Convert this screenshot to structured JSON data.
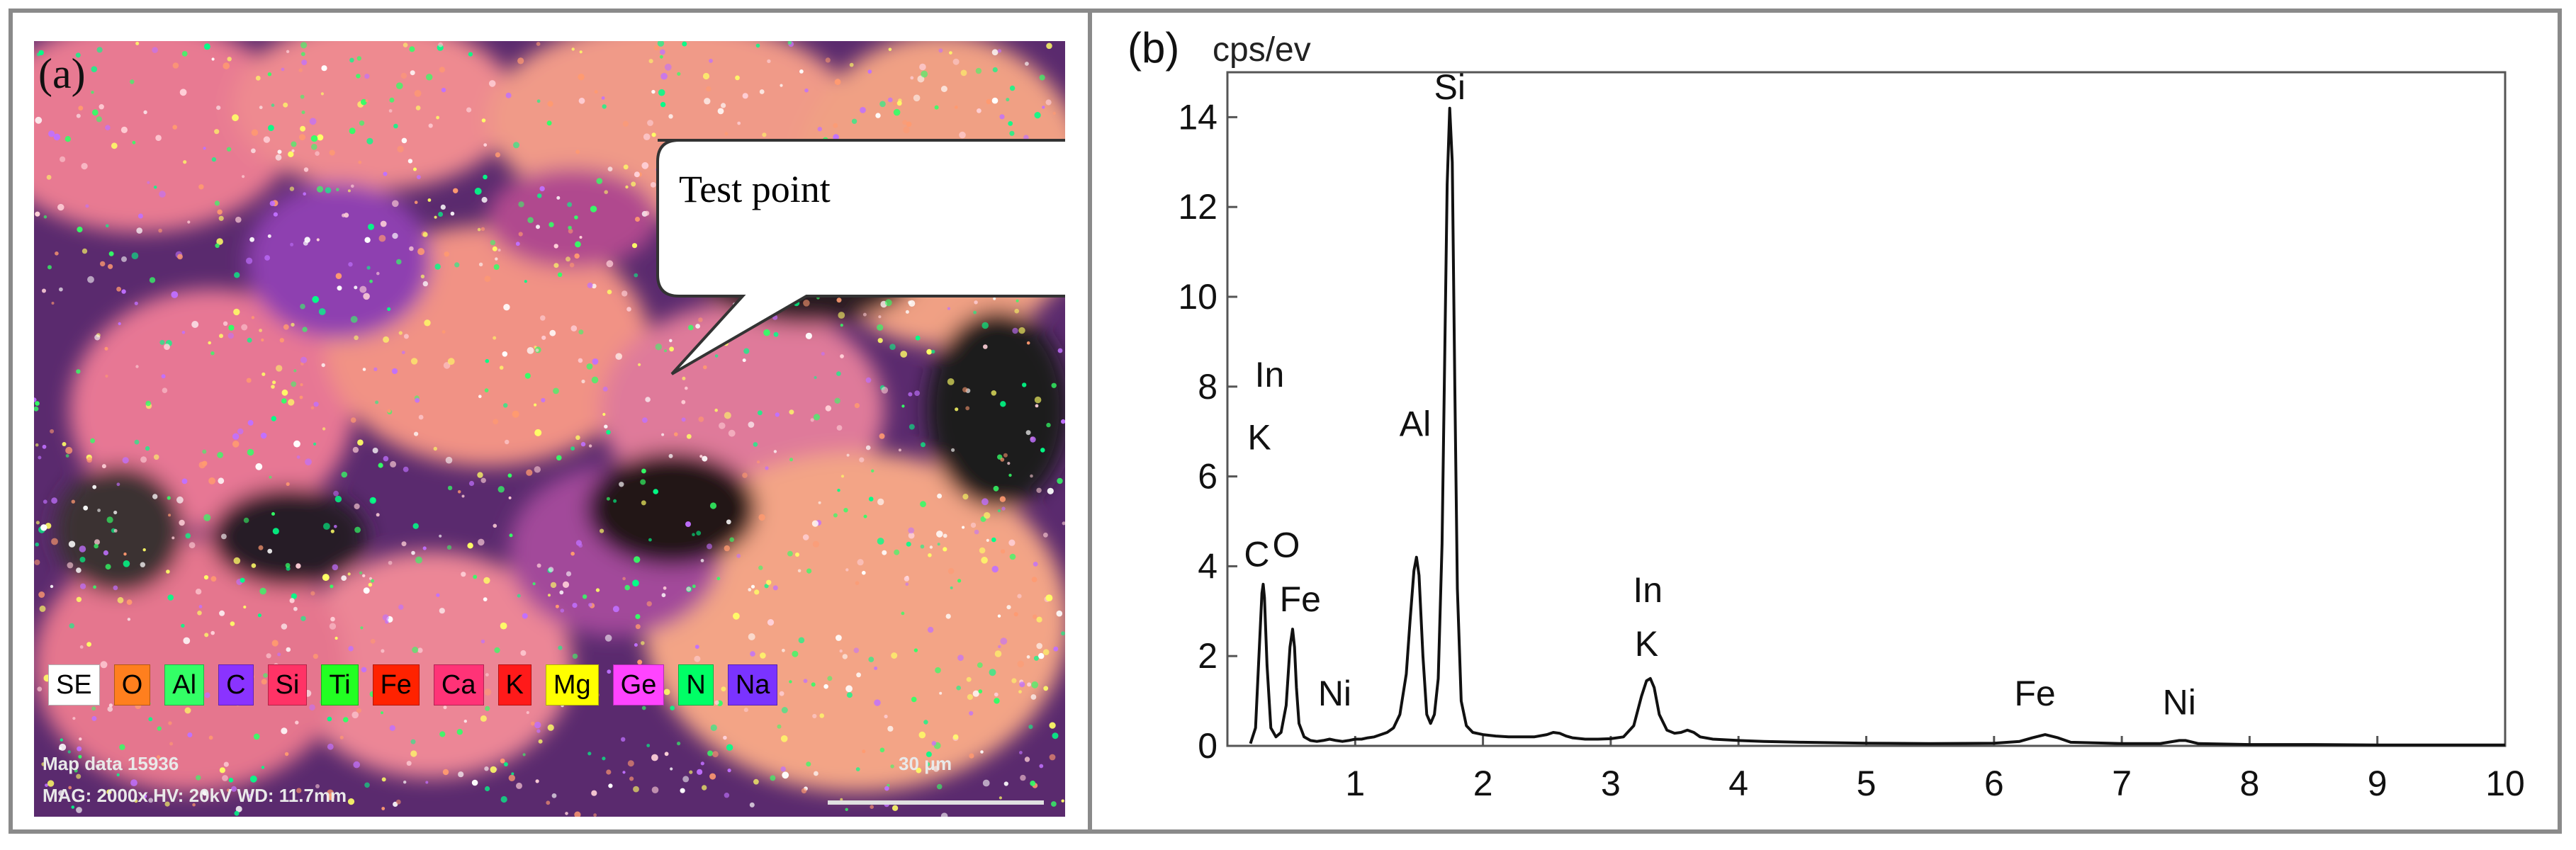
{
  "panel_a": {
    "label": "(a)",
    "callout": "Test point",
    "legend": [
      {
        "symbol": "SE",
        "color": "#ffffff"
      },
      {
        "symbol": "O",
        "color": "#ff7f1e"
      },
      {
        "symbol": "Al",
        "color": "#33ff66"
      },
      {
        "symbol": "C",
        "color": "#8a33ff"
      },
      {
        "symbol": "Si",
        "color": "#ff3366"
      },
      {
        "symbol": "Ti",
        "color": "#22ff22"
      },
      {
        "symbol": "Fe",
        "color": "#ff2200"
      },
      {
        "symbol": "Ca",
        "color": "#ff3377"
      },
      {
        "symbol": "K",
        "color": "#ff1a1a"
      },
      {
        "symbol": "Mg",
        "color": "#ffff00"
      },
      {
        "symbol": "Ge",
        "color": "#ff44ff"
      },
      {
        "symbol": "N",
        "color": "#00ff66"
      },
      {
        "symbol": "Na",
        "color": "#7a33ff"
      }
    ],
    "info_line1": "Map data 15936",
    "info_line2": "MAG: 2000x  HV: 20kV  WD: 11.7mm",
    "scale_bar": "30 μm"
  },
  "chart_data": {
    "type": "line",
    "panel_label": "(b)",
    "ylabel": "cps/ev",
    "xlabel": "",
    "xlim": [
      0,
      10
    ],
    "ylim": [
      0,
      15
    ],
    "xticks": [
      "1",
      "2",
      "3",
      "4",
      "5",
      "6",
      "7",
      "8",
      "9",
      "10"
    ],
    "yticks": [
      "0",
      "2",
      "4",
      "6",
      "8",
      "10",
      "12",
      "14"
    ],
    "grid": false,
    "peaks": [
      {
        "element": "C",
        "x": 0.277,
        "y": 3.6
      },
      {
        "element": "O",
        "x": 0.525,
        "y": 2.6
      },
      {
        "element": "Al",
        "x": 1.486,
        "y": 4.2
      },
      {
        "element": "Si",
        "x": 1.74,
        "y": 14.2
      },
      {
        "element": "In K",
        "x": 3.31,
        "y": 1.5
      },
      {
        "element": "Fe",
        "x": 6.4,
        "y": 0.25
      },
      {
        "element": "Ni",
        "x": 7.47,
        "y": 0.12
      }
    ],
    "spectrum": {
      "x": [
        0.18,
        0.22,
        0.25,
        0.27,
        0.28,
        0.29,
        0.31,
        0.34,
        0.38,
        0.42,
        0.46,
        0.49,
        0.51,
        0.525,
        0.54,
        0.56,
        0.6,
        0.65,
        0.7,
        0.75,
        0.8,
        0.85,
        0.9,
        0.95,
        1.0,
        1.05,
        1.1,
        1.15,
        1.2,
        1.25,
        1.3,
        1.35,
        1.4,
        1.43,
        1.46,
        1.48,
        1.5,
        1.53,
        1.56,
        1.59,
        1.62,
        1.65,
        1.68,
        1.7,
        1.72,
        1.74,
        1.76,
        1.78,
        1.8,
        1.83,
        1.87,
        1.92,
        2.0,
        2.1,
        2.2,
        2.3,
        2.4,
        2.5,
        2.55,
        2.6,
        2.65,
        2.7,
        2.8,
        2.9,
        3.0,
        3.1,
        3.18,
        3.24,
        3.28,
        3.31,
        3.34,
        3.38,
        3.44,
        3.5,
        3.55,
        3.6,
        3.65,
        3.7,
        3.8,
        4.0,
        4.2,
        4.5,
        5.0,
        5.5,
        6.0,
        6.2,
        6.3,
        6.4,
        6.5,
        6.6,
        7.0,
        7.3,
        7.45,
        7.5,
        7.6,
        8.0,
        8.5,
        9.0,
        9.5,
        10.0
      ],
      "y": [
        0.05,
        0.4,
        2.2,
        3.4,
        3.6,
        3.3,
        1.8,
        0.4,
        0.2,
        0.3,
        0.9,
        2.2,
        2.6,
        2.2,
        1.3,
        0.5,
        0.2,
        0.12,
        0.1,
        0.12,
        0.15,
        0.12,
        0.1,
        0.12,
        0.15,
        0.15,
        0.18,
        0.2,
        0.25,
        0.3,
        0.4,
        0.7,
        1.6,
        2.8,
        3.9,
        4.2,
        3.8,
        2.0,
        0.7,
        0.5,
        0.7,
        1.5,
        4.5,
        8.5,
        12.5,
        14.2,
        13.0,
        8.0,
        3.5,
        1.0,
        0.45,
        0.3,
        0.25,
        0.22,
        0.2,
        0.2,
        0.2,
        0.25,
        0.3,
        0.28,
        0.22,
        0.18,
        0.15,
        0.15,
        0.16,
        0.2,
        0.45,
        1.1,
        1.45,
        1.5,
        1.3,
        0.7,
        0.35,
        0.28,
        0.3,
        0.35,
        0.3,
        0.2,
        0.15,
        0.12,
        0.1,
        0.08,
        0.06,
        0.05,
        0.06,
        0.1,
        0.18,
        0.25,
        0.18,
        0.08,
        0.05,
        0.05,
        0.12,
        0.12,
        0.05,
        0.03,
        0.03,
        0.02,
        0.02,
        0.02
      ]
    },
    "annotations": [
      {
        "text": "Si",
        "x": 1.74,
        "y": 14.4
      },
      {
        "text": "In",
        "x": 0.33,
        "y": 8.0
      },
      {
        "text": "K",
        "x": 0.25,
        "y": 6.6
      },
      {
        "text": "Al",
        "x": 1.47,
        "y": 6.9
      },
      {
        "text": "C",
        "x": 0.23,
        "y": 4.0
      },
      {
        "text": "O",
        "x": 0.46,
        "y": 4.2
      },
      {
        "text": "Fe",
        "x": 0.57,
        "y": 3.0
      },
      {
        "text": "Ni",
        "x": 0.84,
        "y": 0.9
      },
      {
        "text": "In",
        "x": 3.29,
        "y": 3.2
      },
      {
        "text": "K",
        "x": 3.28,
        "y": 2.0
      },
      {
        "text": "Fe",
        "x": 6.32,
        "y": 0.9
      },
      {
        "text": "Ni",
        "x": 7.45,
        "y": 0.7
      }
    ]
  }
}
